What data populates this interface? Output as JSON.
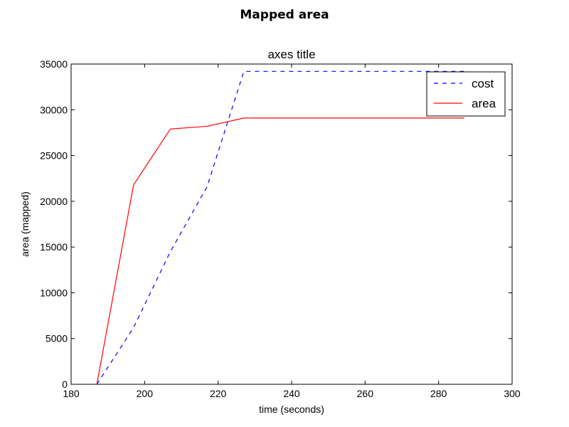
{
  "chart_data": {
    "type": "line",
    "suptitle": "Mapped area",
    "title": "axes title",
    "xlabel": "time (seconds)",
    "ylabel": "area (mapped)",
    "xlim": [
      180,
      300
    ],
    "ylim": [
      0,
      35000
    ],
    "xticks": [
      180,
      200,
      220,
      240,
      260,
      280,
      300
    ],
    "yticks": [
      0,
      5000,
      10000,
      15000,
      20000,
      25000,
      30000,
      35000
    ],
    "grid": false,
    "legend_position": "top-right",
    "series": [
      {
        "name": "cost",
        "color": "#0000ff",
        "style": "dashed",
        "x": [
          187,
          197,
          207,
          217,
          227,
          237,
          247,
          257,
          267,
          277,
          287
        ],
        "y": [
          0,
          6200,
          14500,
          21600,
          34200,
          34200,
          34200,
          34200,
          34200,
          34200,
          34200
        ]
      },
      {
        "name": "area",
        "color": "#ff0000",
        "style": "solid",
        "x": [
          187,
          197,
          207,
          217,
          227,
          237,
          247,
          257,
          267,
          277,
          287
        ],
        "y": [
          0,
          21800,
          27900,
          28200,
          29100,
          29100,
          29100,
          29100,
          29100,
          29100,
          29100
        ]
      }
    ]
  }
}
